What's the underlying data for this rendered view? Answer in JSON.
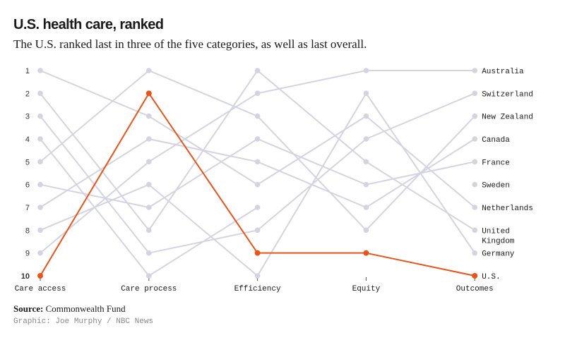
{
  "header": {
    "title": "U.S. health care, ranked",
    "subtitle": "The U.S. ranked last in three of the five categories, as well as last overall."
  },
  "footer": {
    "source_label": "Source:",
    "source_value": "Commonwealth Fund",
    "credit": "Graphic: Joe Murphy / NBC News"
  },
  "colors": {
    "highlight": "#e8541a",
    "base_line": "#d4d3e2",
    "base_dot": "#d4d3e2",
    "tick": "#555555"
  },
  "chart_data": {
    "type": "line",
    "subtype": "bump",
    "title": "U.S. health care, ranked",
    "categories": [
      "Care access",
      "Care process",
      "Efficiency",
      "Equity",
      "Outcomes"
    ],
    "y_ticks": [
      1,
      2,
      3,
      4,
      5,
      6,
      7,
      8,
      9,
      10
    ],
    "ylim": [
      1,
      10
    ],
    "y_reversed": true,
    "grid": false,
    "legend": "labels at right end of lines",
    "highlight_series": "U.S.",
    "series": [
      {
        "name": "Australia",
        "label_lines": [
          "Australia"
        ],
        "values": [
          9,
          5,
          2,
          1,
          1
        ]
      },
      {
        "name": "Switzerland",
        "label_lines": [
          "Switzerland"
        ],
        "values": [
          3,
          9,
          8,
          4,
          2
        ]
      },
      {
        "name": "New Zealand",
        "label_lines": [
          "New Zealand"
        ],
        "values": [
          5,
          1,
          3,
          8,
          3
        ]
      },
      {
        "name": "Canada",
        "label_lines": [
          "Canada"
        ],
        "values": [
          7,
          4,
          5,
          7,
          4
        ]
      },
      {
        "name": "France",
        "label_lines": [
          "France"
        ],
        "values": [
          6,
          7,
          4,
          6,
          5
        ]
      },
      {
        "name": "Sweden",
        "label_lines": [
          "Sweden"
        ],
        "values": [
          4,
          10,
          7,
          null,
          6
        ]
      },
      {
        "name": "Netherlands",
        "label_lines": [
          "Netherlands"
        ],
        "values": [
          1,
          3,
          6,
          3,
          7
        ]
      },
      {
        "name": "United Kingdom",
        "label_lines": [
          "United",
          "Kingdom"
        ],
        "values": [
          2,
          8,
          1,
          5,
          8
        ]
      },
      {
        "name": "Germany",
        "label_lines": [
          "Germany"
        ],
        "values": [
          8,
          6,
          10,
          2,
          9
        ]
      },
      {
        "name": "U.S.",
        "label_lines": [
          "U.S."
        ],
        "values": [
          10,
          2,
          9,
          9,
          10
        ]
      }
    ]
  }
}
